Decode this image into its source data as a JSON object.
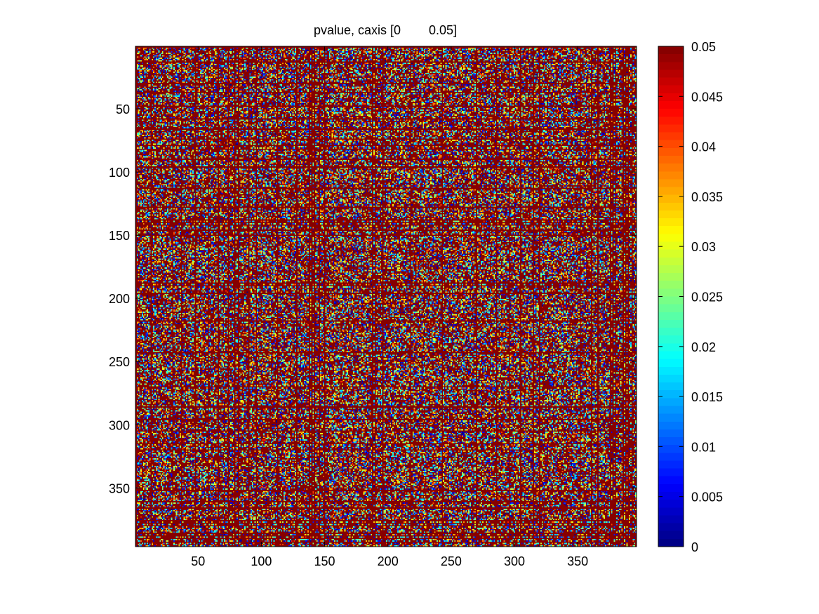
{
  "chart_data": {
    "type": "heatmap",
    "title": "pvalue, caxis [0        0.05]",
    "xlabel": "",
    "ylabel": "",
    "rows": 396,
    "cols": 396,
    "xlim": [
      0.5,
      396.5
    ],
    "ylim": [
      0.5,
      396.5
    ],
    "y_direction": "reverse",
    "x_ticks": [
      50,
      100,
      150,
      200,
      250,
      300,
      350
    ],
    "x_tick_labels": [
      "50",
      "100",
      "150",
      "200",
      "250",
      "300",
      "350"
    ],
    "y_ticks": [
      50,
      100,
      150,
      200,
      250,
      300,
      350
    ],
    "y_tick_labels": [
      "50",
      "100",
      "150",
      "200",
      "250",
      "300",
      "350"
    ],
    "caxis": [
      0,
      0.05
    ],
    "colormap": "jet",
    "colorbar": {
      "position": "right",
      "ticks": [
        0,
        0.005,
        0.01,
        0.015,
        0.02,
        0.025,
        0.03,
        0.035,
        0.04,
        0.045,
        0.05
      ],
      "tick_labels": [
        "0",
        "0.005",
        "0.01",
        "0.015",
        "0.02",
        "0.025",
        "0.03",
        "0.035",
        "0.04",
        "0.045",
        "0.05"
      ]
    },
    "saturated_rows_cols": [
      1,
      13,
      30,
      37,
      48,
      58,
      66,
      74,
      79,
      82,
      90,
      96,
      113,
      128,
      138,
      140,
      142,
      146,
      150,
      188,
      190,
      196,
      218,
      243,
      270,
      286,
      296,
      305,
      315,
      320,
      352,
      361,
      366,
      376,
      378,
      380,
      386,
      388,
      390,
      393
    ],
    "saturated_value": 0.05,
    "fill_fraction_below_threshold": 0.45
  }
}
